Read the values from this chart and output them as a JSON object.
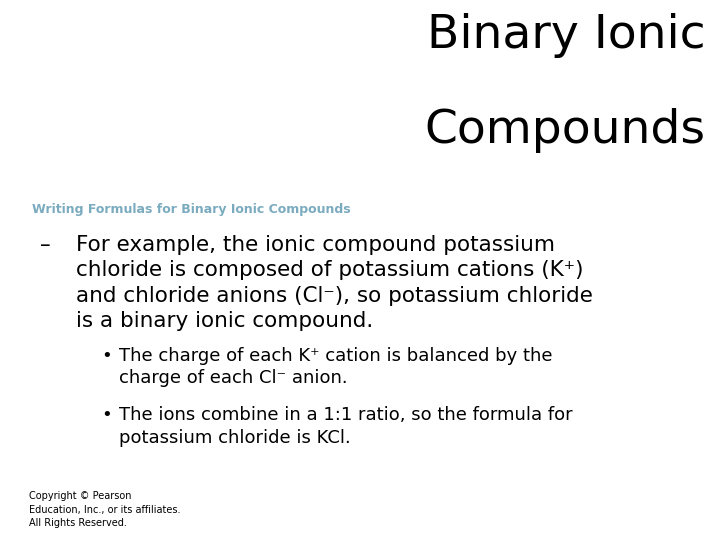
{
  "title_line1": "Binary Ionic",
  "title_line2": "Compounds",
  "subtitle": "Writing Formulas for Binary Ionic Compounds",
  "subtitle_color": "#7aabbf",
  "sub_bullet1_line1": "The charge of each K⁺ cation is balanced by the",
  "sub_bullet1_line2": "charge of each Cl⁻ anion.",
  "sub_bullet2_line1": "The ions combine in a 1:1 ratio, so the formula for",
  "sub_bullet2_line2": "potassium chloride is KCl.",
  "copyright": "Copyright © Pearson\nEducation, Inc., or its affiliates.\nAll Rights Reserved.",
  "bg_color": "#ffffff",
  "title_color": "#000000",
  "body_color": "#000000",
  "title_fontsize": 34,
  "subtitle_fontsize": 9,
  "main_bullet_fontsize": 15.5,
  "sub_bullet_fontsize": 13,
  "copyright_fontsize": 7
}
